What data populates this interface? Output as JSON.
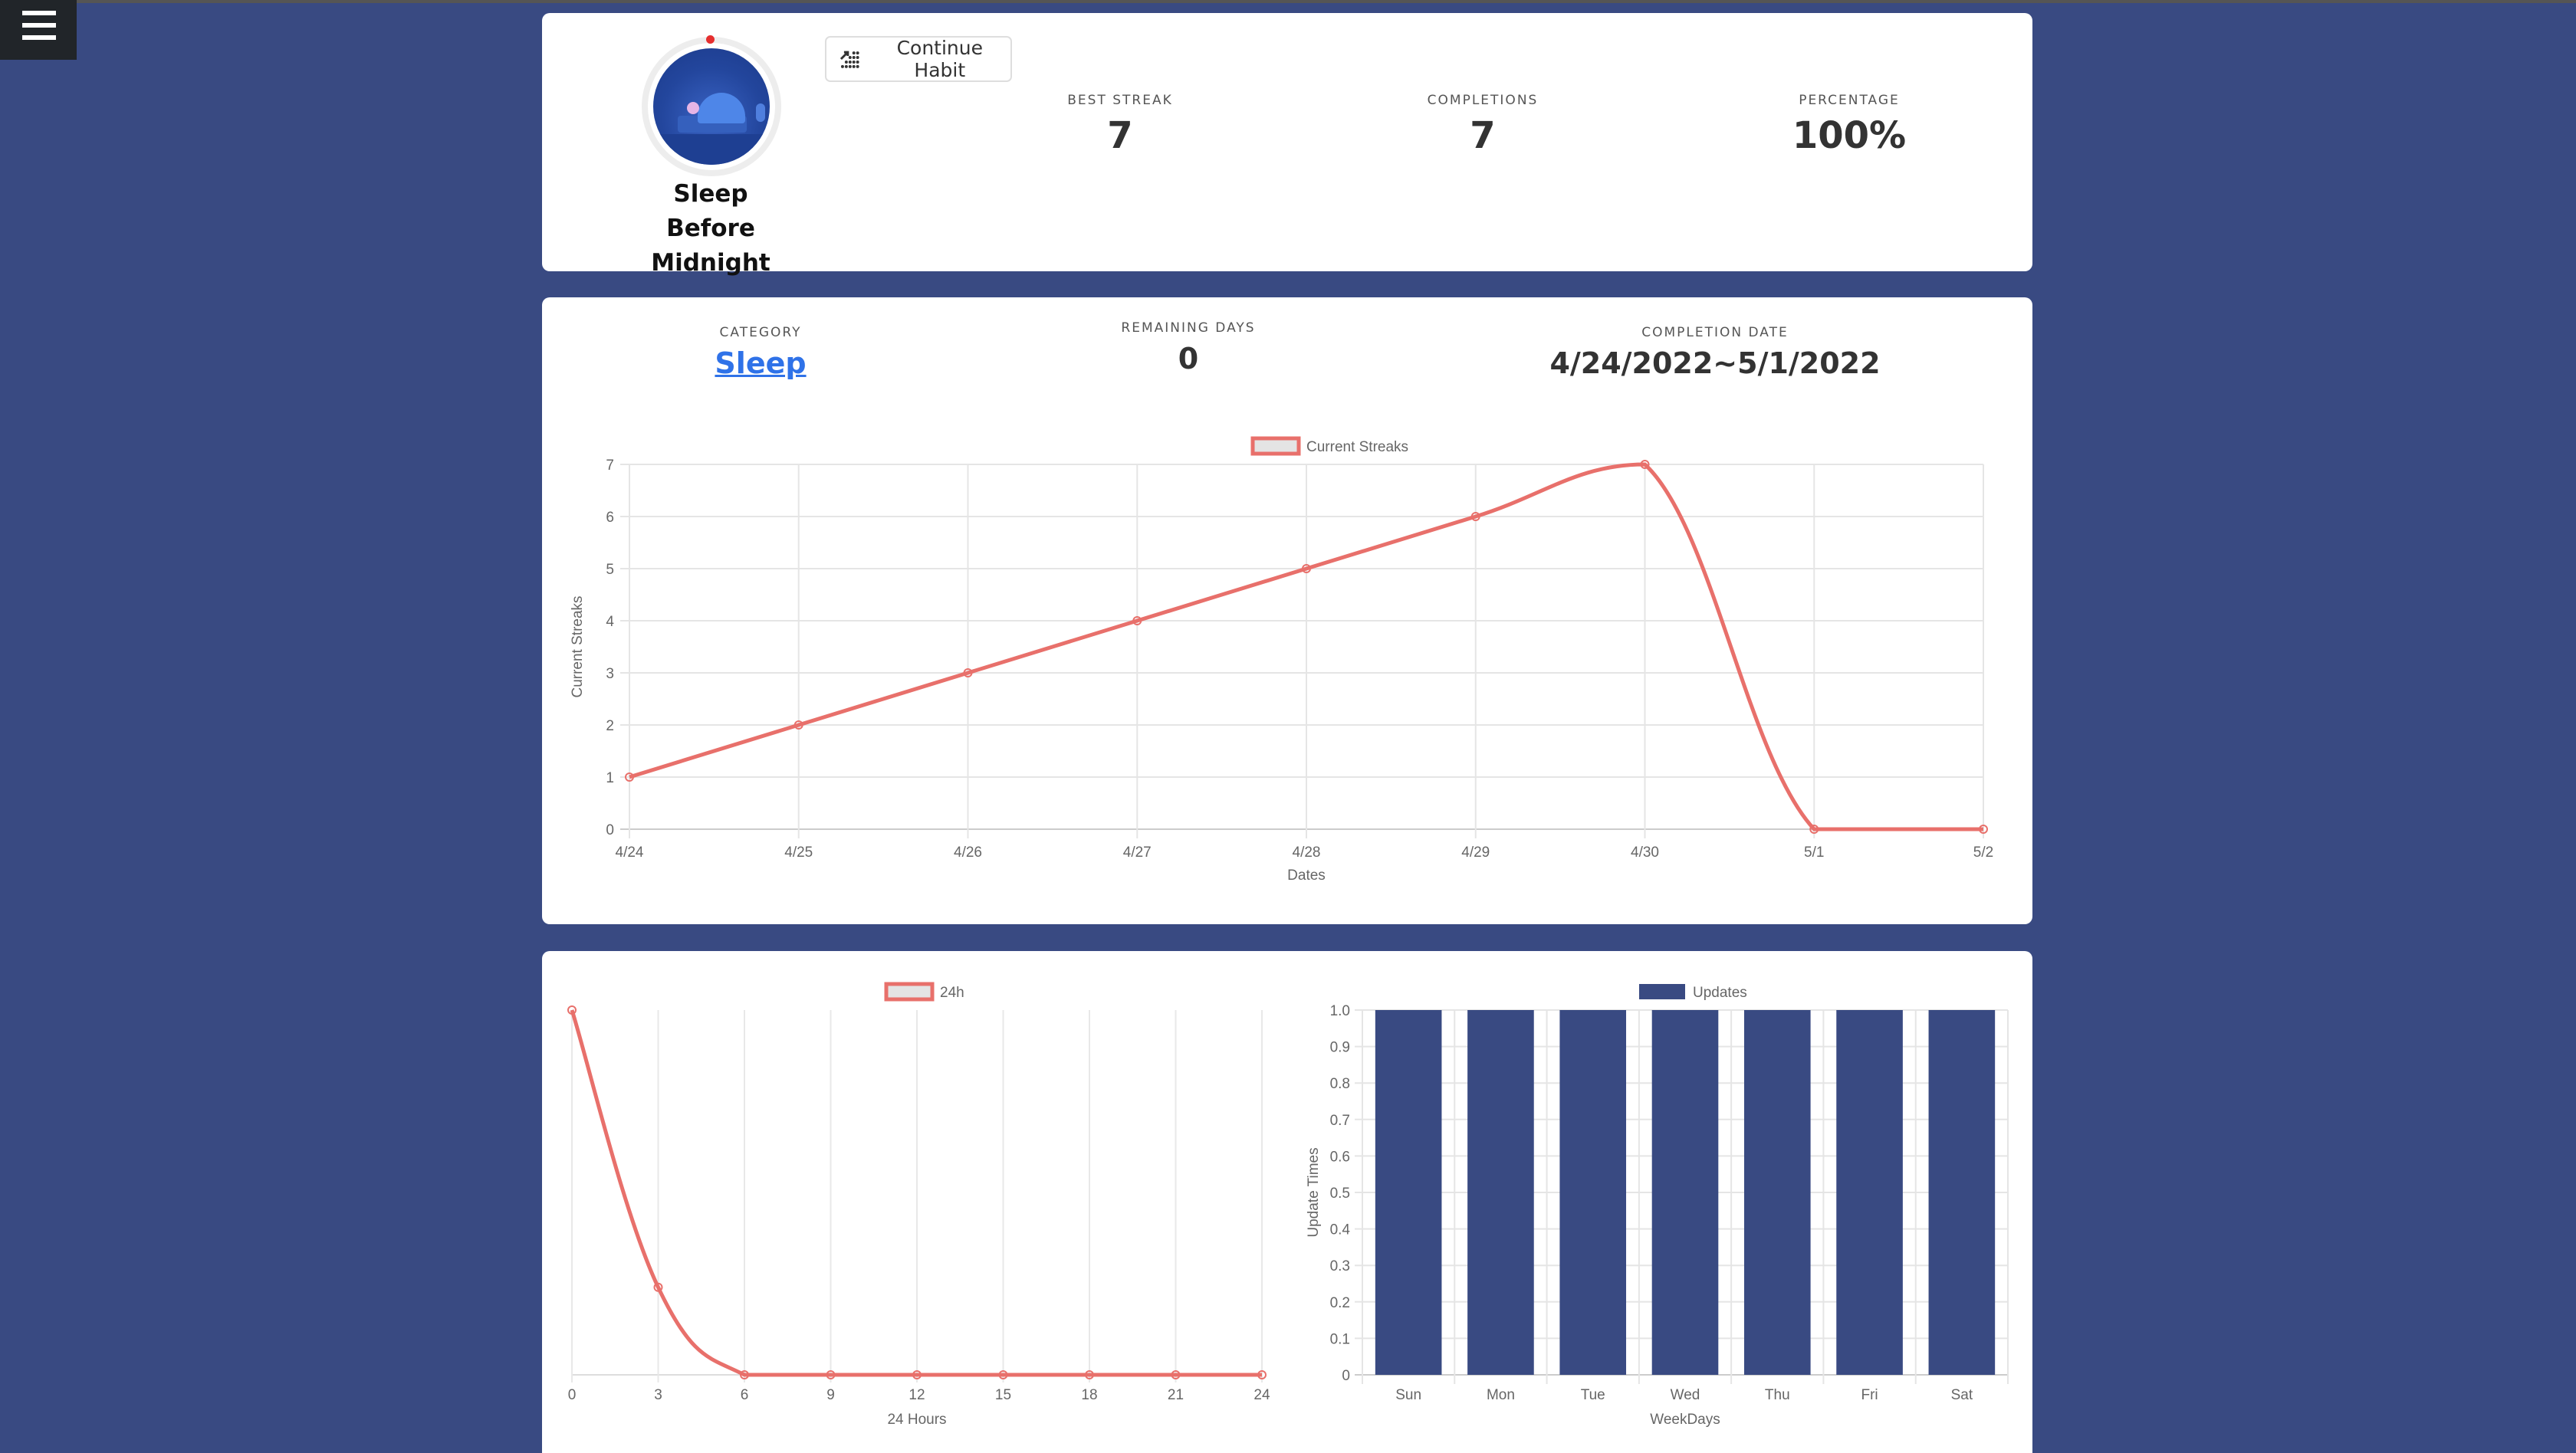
{
  "nav": {
    "menu_icon": "hamburger-menu-icon"
  },
  "habit": {
    "name": "Sleep Before Midnight",
    "image_icon": "sleeping-person-illustration",
    "continue_button": {
      "label": "Continue Habit",
      "icon": "trending-up-dots-icon"
    }
  },
  "stats": [
    {
      "label": "BEST STREAK",
      "value": "7"
    },
    {
      "label": "COMPLETIONS",
      "value": "7"
    },
    {
      "label": "PERCENTAGE",
      "value": "100%"
    }
  ],
  "details": {
    "category": {
      "label": "CATEGORY",
      "value": "Sleep"
    },
    "remaining_days": {
      "label": "REMAINING DAYS",
      "value": "0"
    },
    "completion_date": {
      "label": "COMPLETION DATE",
      "value": "4/24/2022~5/1/2022"
    }
  },
  "colors": {
    "background": "#394a82",
    "line": "#e8706b",
    "bar": "#394a82",
    "link": "#2f72e8",
    "legend_fill": "#e4e4e4"
  },
  "chart_data": [
    {
      "type": "line",
      "title": "",
      "legend": [
        "Current Streaks"
      ],
      "legend_position": "top",
      "xlabel": "Dates",
      "ylabel": "Current Streaks",
      "categories": [
        "4/24",
        "4/25",
        "4/26",
        "4/27",
        "4/28",
        "4/29",
        "4/30",
        "5/1",
        "5/2"
      ],
      "series": [
        {
          "name": "Current Streaks",
          "values": [
            1,
            2,
            3,
            4,
            5,
            6,
            7,
            0,
            0
          ]
        }
      ],
      "yticks": [
        "0",
        "1",
        "2",
        "3",
        "4",
        "5",
        "6",
        "7"
      ],
      "ylim": [
        0,
        7
      ],
      "grid": true
    },
    {
      "type": "line",
      "title": "",
      "legend": [
        "24h"
      ],
      "legend_position": "top",
      "xlabel": "24 Hours",
      "ylabel": "",
      "categories": [
        "0",
        "3",
        "6",
        "9",
        "12",
        "15",
        "18",
        "21",
        "24"
      ],
      "series": [
        {
          "name": "24h",
          "values": [
            1,
            0.24,
            0,
            0,
            0,
            0,
            0,
            0,
            0
          ]
        }
      ],
      "yticks": [],
      "ylim": [
        0,
        1
      ],
      "grid": true
    },
    {
      "type": "bar",
      "title": "",
      "legend": [
        "Updates"
      ],
      "legend_position": "top",
      "xlabel": "WeekDays",
      "ylabel": "Update Times",
      "categories": [
        "Sun",
        "Mon",
        "Tue",
        "Wed",
        "Thu",
        "Fri",
        "Sat"
      ],
      "series": [
        {
          "name": "Updates",
          "values": [
            1,
            1,
            1,
            1,
            1,
            1,
            1
          ]
        }
      ],
      "yticks": [
        "0",
        "0.1",
        "0.2",
        "0.3",
        "0.4",
        "0.5",
        "0.6",
        "0.7",
        "0.8",
        "0.9",
        "1.0"
      ],
      "ylim": [
        0,
        1.0
      ],
      "grid": true
    }
  ]
}
